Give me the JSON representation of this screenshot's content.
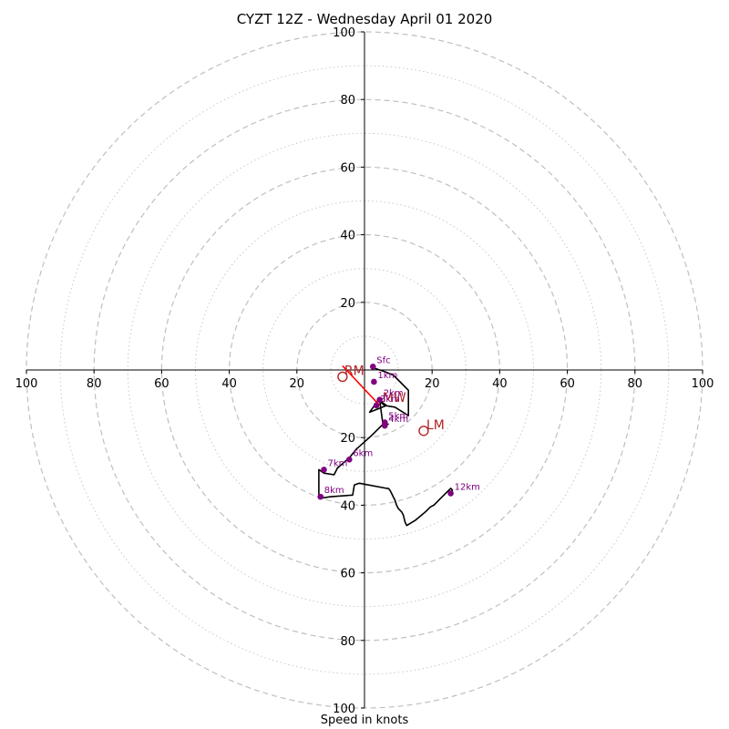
{
  "chart_data": {
    "type": "scatter",
    "title": "CYZT 12Z - Wednesday April 01 2020",
    "xlabel": "Speed in knots",
    "units": "knots",
    "rings_major": [
      20,
      40,
      60,
      80,
      100
    ],
    "rings_minor": [
      10,
      30,
      50,
      70,
      90
    ],
    "xlim": [
      -100,
      100
    ],
    "ylim": [
      -100,
      100
    ],
    "x_tick_labels": [
      "100",
      "80",
      "60",
      "40",
      "20",
      "20",
      "40",
      "60",
      "80",
      "100"
    ],
    "y_tick_labels": [
      "100",
      "80",
      "60",
      "40",
      "20",
      "20",
      "40",
      "60",
      "80",
      "100"
    ],
    "hodograph_trace": [
      [
        2.5,
        1.0
      ],
      [
        3.0,
        0.5
      ],
      [
        6.0,
        -0.5
      ],
      [
        8.5,
        -1.5
      ],
      [
        10.5,
        -3.5
      ],
      [
        13.0,
        -6.0
      ],
      [
        13.0,
        -13.5
      ],
      [
        9.0,
        -11.0
      ],
      [
        6.0,
        -10.5
      ],
      [
        4.0,
        -9.0
      ],
      [
        1.5,
        -12.5
      ],
      [
        6.5,
        -10.5
      ],
      [
        4.5,
        -9.0
      ],
      [
        5.5,
        -16.5
      ],
      [
        7.0,
        -16.0
      ],
      [
        5.5,
        -16.0
      ],
      [
        2.0,
        -19.5
      ],
      [
        -2.5,
        -23.5
      ],
      [
        -4.5,
        -26.0
      ],
      [
        -8.0,
        -29.0
      ],
      [
        -8.0,
        -29.0
      ],
      [
        -9.0,
        -31.0
      ],
      [
        -12.0,
        -30.5
      ],
      [
        -13.5,
        -29.5
      ],
      [
        -13.5,
        -38.0
      ],
      [
        -10.0,
        -37.5
      ],
      [
        -3.5,
        -37.0
      ],
      [
        -3.0,
        -34.0
      ],
      [
        -1.5,
        -33.5
      ],
      [
        6.5,
        -35.0
      ],
      [
        7.0,
        -35.0
      ],
      [
        7.0,
        -35.0
      ],
      [
        7.0,
        -35.0
      ],
      [
        7.0,
        -35.0
      ],
      [
        7.0,
        -35.0
      ],
      [
        7.5,
        -35.5
      ],
      [
        8.0,
        -36.5
      ],
      [
        8.5,
        -37.5
      ],
      [
        9.0,
        -38.5
      ],
      [
        9.5,
        -40.0
      ],
      [
        10.0,
        -41.0
      ],
      [
        11.0,
        -42.0
      ],
      [
        11.5,
        -43.0
      ],
      [
        12.0,
        -45.0
      ],
      [
        12.5,
        -46.0
      ],
      [
        15.0,
        -44.5
      ],
      [
        18.0,
        -42.0
      ],
      [
        19.5,
        -40.5
      ],
      [
        20.5,
        -40.0
      ],
      [
        22.0,
        -38.5
      ],
      [
        24.0,
        -36.5
      ],
      [
        25.0,
        -35.5
      ],
      [
        25.5,
        -35.0
      ],
      [
        26.0,
        -35.5
      ],
      [
        25.5,
        -36.5
      ]
    ],
    "height_markers": [
      {
        "label": "Sfc",
        "x": 2.5,
        "y": 1.0
      },
      {
        "label": "1km",
        "x": 2.8,
        "y": -3.5
      },
      {
        "label": "2km",
        "x": 4.5,
        "y": -8.8
      },
      {
        "label": "3km",
        "x": 3.5,
        "y": -10.5
      },
      {
        "label": "4km",
        "x": 6.0,
        "y": -16.5
      },
      {
        "label": "5km",
        "x": 6.0,
        "y": -15.5
      },
      {
        "label": "6km",
        "x": -4.5,
        "y": -26.5
      },
      {
        "label": "7km",
        "x": -12.0,
        "y": -29.5
      },
      {
        "label": "8km",
        "x": -13.0,
        "y": -37.5
      },
      {
        "label": "12km",
        "x": 25.5,
        "y": -36.5
      }
    ],
    "storm_motion": [
      {
        "label": "RM",
        "x": -6.5,
        "y": -2.0
      },
      {
        "label": "LM",
        "x": 17.5,
        "y": -18.0
      },
      {
        "label": "MW",
        "x": 4.5,
        "y": -10.0
      }
    ],
    "shear_vector": {
      "from": [
        0,
        3
      ],
      "to": [
        4.5,
        -10.5
      ]
    },
    "grid": true,
    "colors": {
      "trace": "#000000",
      "markers": "#800080",
      "storm_motion": "#b22222",
      "shear_vector": "#ff0000",
      "grid": "#bfbfbf"
    }
  }
}
